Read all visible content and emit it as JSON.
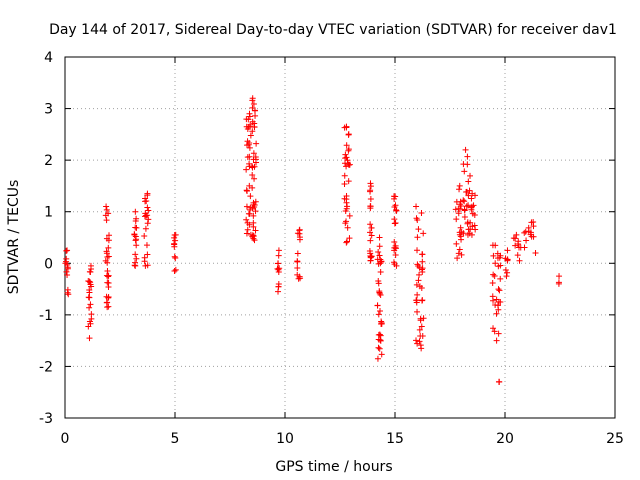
{
  "chart_data": {
    "type": "scatter",
    "title": "Day 144 of 2017, Sidereal Day-to-day VTEC variation (SDTVAR) for receiver dav1",
    "xlabel": "GPS time / hours",
    "ylabel": "SDTVAR / TECUs",
    "xlim": [
      0,
      25
    ],
    "ylim": [
      -3,
      4
    ],
    "xticks": [
      0,
      5,
      10,
      15,
      20,
      25
    ],
    "yticks": [
      -3,
      -2,
      -1,
      0,
      1,
      2,
      3,
      4
    ],
    "grid": true,
    "marker": "+",
    "series_color": "#ff0000",
    "clusters": [
      {
        "x": [
          0.0,
          0.15
        ],
        "y": [
          -0.6,
          0.25
        ]
      },
      {
        "x": [
          1.05,
          1.2
        ],
        "y": [
          -1.45,
          -0.05
        ]
      },
      {
        "x": [
          1.85,
          2.0
        ],
        "y": [
          -0.85,
          1.1
        ]
      },
      {
        "x": [
          3.15,
          3.25
        ],
        "y": [
          -0.05,
          1.0
        ]
      },
      {
        "x": [
          3.6,
          3.8
        ],
        "y": [
          -0.05,
          1.35
        ]
      },
      {
        "x": [
          4.95,
          5.05
        ],
        "y": [
          -0.15,
          0.55
        ]
      },
      {
        "x": [
          8.2,
          8.45
        ],
        "y": [
          0.55,
          2.9
        ]
      },
      {
        "x": [
          8.5,
          8.7
        ],
        "y": [
          0.45,
          3.2
        ]
      },
      {
        "x": [
          9.65,
          9.75
        ],
        "y": [
          -0.55,
          0.25
        ]
      },
      {
        "x": [
          10.55,
          10.7
        ],
        "y": [
          -0.3,
          0.65
        ]
      },
      {
        "x": [
          12.7,
          12.95
        ],
        "y": [
          0.4,
          2.65
        ]
      },
      {
        "x": [
          13.85,
          13.95
        ],
        "y": [
          0.05,
          1.55
        ]
      },
      {
        "x": [
          14.2,
          14.4
        ],
        "y": [
          -1.85,
          0.5
        ]
      },
      {
        "x": [
          14.95,
          15.1
        ],
        "y": [
          -0.05,
          1.3
        ]
      },
      {
        "x": [
          15.95,
          16.3
        ],
        "y": [
          -1.65,
          1.1
        ]
      },
      {
        "x": [
          17.75,
          18.05
        ],
        "y": [
          0.1,
          1.5
        ]
      },
      {
        "x": [
          18.1,
          18.45
        ],
        "y": [
          0.55,
          2.2
        ]
      },
      {
        "x": [
          18.45,
          18.65
        ],
        "y": [
          0.55,
          1.35
        ]
      },
      {
        "x": [
          19.4,
          19.8
        ],
        "y": [
          -1.5,
          0.35
        ]
      },
      {
        "x": [
          19.7,
          19.75
        ],
        "y": [
          -2.3,
          -2.3
        ]
      },
      {
        "x": [
          20.0,
          20.15
        ],
        "y": [
          -0.25,
          0.25
        ]
      },
      {
        "x": [
          20.4,
          20.75
        ],
        "y": [
          0.05,
          0.55
        ]
      },
      {
        "x": [
          20.75,
          21.4
        ],
        "y": [
          0.2,
          0.8
        ]
      },
      {
        "x": [
          22.4,
          22.55
        ],
        "y": [
          -0.4,
          -0.25
        ]
      }
    ]
  }
}
